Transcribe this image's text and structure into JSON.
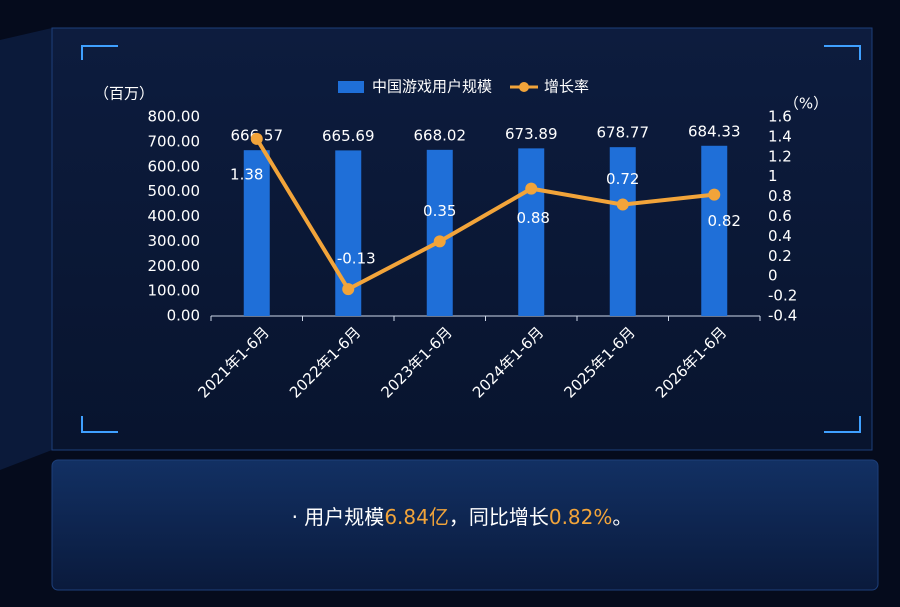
{
  "chart_data": {
    "type": "bar-line",
    "y_unit": "（百万）",
    "y2_unit": "（%）",
    "categories": [
      "2021年1-6月",
      "2022年1-6月",
      "2023年1-6月",
      "2024年1-6月",
      "2025年1-6月",
      "2026年1-6月"
    ],
    "series": [
      {
        "name": "中国游戏用户规模",
        "type": "bar",
        "color": "#1f6fd8",
        "values": [
          666.57,
          665.69,
          668.02,
          673.89,
          678.77,
          684.33
        ]
      },
      {
        "name": "增长率",
        "type": "line",
        "color": "#f2a43a",
        "axis": "y2",
        "values": [
          1.38,
          -0.13,
          0.35,
          0.88,
          0.72,
          0.82
        ]
      }
    ],
    "ylim": [
      0,
      800
    ],
    "yticks": [
      {
        "value": 0,
        "label": "0.00"
      },
      {
        "value": 100,
        "label": "100.00"
      },
      {
        "value": 200,
        "label": "200.00"
      },
      {
        "value": 300,
        "label": "300.00"
      },
      {
        "value": 400,
        "label": "400.00"
      },
      {
        "value": 500,
        "label": "500.00"
      },
      {
        "value": 600,
        "label": "600.00"
      },
      {
        "value": 700,
        "label": "700.00"
      },
      {
        "value": 800,
        "label": "800.00"
      }
    ],
    "y2lim": [
      -0.4,
      1.6
    ],
    "y2ticks": [
      -0.4,
      -0.2,
      0,
      0.2,
      0.4,
      0.6,
      0.8,
      1,
      1.2,
      1.4,
      1.6
    ],
    "legend": "top"
  },
  "footer": {
    "parts": [
      "· 用户规模",
      "6.84亿",
      "，同比增长",
      "0.82%",
      "。"
    ]
  }
}
